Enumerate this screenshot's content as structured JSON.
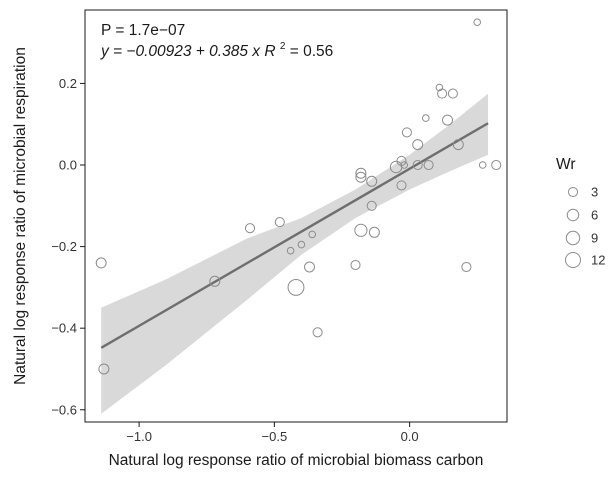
{
  "chart_data": {
    "type": "scatter",
    "xlabel": "Natural log response ratio of microbial biomass carbon",
    "ylabel": "Natural log response ratio of microbial respiration",
    "xlim": [
      -1.2,
      0.36
    ],
    "ylim": [
      -0.63,
      0.38
    ],
    "x_ticks": [
      -1.0,
      -0.5,
      0.0
    ],
    "x_tick_labels": [
      "−1.0",
      "−0.5",
      "0.0"
    ],
    "y_ticks": [
      -0.6,
      -0.4,
      -0.2,
      0.0,
      0.2
    ],
    "y_tick_labels": [
      "−0.6",
      "−0.4",
      "−0.2",
      "0.0",
      "0.2"
    ],
    "grid": false,
    "annotations": {
      "p_value": "P = 1.7e−07",
      "equation_prefix": "y = −0.00923 + 0.385 x",
      "r2_label": "R",
      "r2_sup": "2",
      "r2_value": " = 0.56"
    },
    "fit": {
      "intercept": -0.00923,
      "slope": 0.385,
      "x_range": [
        -1.14,
        0.29
      ],
      "line_color": "#6e6e6e",
      "band_color": "#d9d9d9",
      "band": [
        {
          "x": -1.14,
          "lo": -0.61,
          "hi": -0.35
        },
        {
          "x": -0.9,
          "lo": -0.49,
          "hi": -0.28
        },
        {
          "x": -0.6,
          "lo": -0.33,
          "hi": -0.18
        },
        {
          "x": -0.4,
          "lo": -0.22,
          "hi": -0.13
        },
        {
          "x": -0.2,
          "lo": -0.13,
          "hi": -0.06
        },
        {
          "x": 0.0,
          "lo": -0.06,
          "hi": 0.025
        },
        {
          "x": 0.15,
          "lo": -0.015,
          "hi": 0.1
        },
        {
          "x": 0.29,
          "lo": 0.025,
          "hi": 0.175
        }
      ]
    },
    "size_legend": {
      "title": "Wr",
      "entries": [
        {
          "label": "3",
          "value": 3
        },
        {
          "label": "6",
          "value": 6
        },
        {
          "label": "9",
          "value": 9
        },
        {
          "label": "12",
          "value": 12
        }
      ]
    },
    "points": [
      {
        "x": -1.14,
        "y": -0.24,
        "w": 4
      },
      {
        "x": -1.13,
        "y": -0.5,
        "w": 4
      },
      {
        "x": -0.72,
        "y": -0.285,
        "w": 4
      },
      {
        "x": -0.59,
        "y": -0.155,
        "w": 3
      },
      {
        "x": -0.48,
        "y": -0.14,
        "w": 3
      },
      {
        "x": -0.44,
        "y": -0.21,
        "w": 1
      },
      {
        "x": -0.4,
        "y": -0.195,
        "w": 1
      },
      {
        "x": -0.42,
        "y": -0.3,
        "w": 14
      },
      {
        "x": -0.37,
        "y": -0.25,
        "w": 4
      },
      {
        "x": -0.36,
        "y": -0.17,
        "w": 1
      },
      {
        "x": -0.34,
        "y": -0.41,
        "w": 3
      },
      {
        "x": -0.2,
        "y": -0.245,
        "w": 3
      },
      {
        "x": -0.18,
        "y": -0.16,
        "w": 7
      },
      {
        "x": -0.18,
        "y": -0.02,
        "w": 4
      },
      {
        "x": -0.18,
        "y": -0.03,
        "w": 4
      },
      {
        "x": -0.14,
        "y": -0.04,
        "w": 4
      },
      {
        "x": -0.14,
        "y": -0.1,
        "w": 3
      },
      {
        "x": -0.13,
        "y": -0.165,
        "w": 4
      },
      {
        "x": -0.05,
        "y": -0.005,
        "w": 6
      },
      {
        "x": -0.03,
        "y": 0.01,
        "w": 3
      },
      {
        "x": -0.03,
        "y": -0.05,
        "w": 3
      },
      {
        "x": -0.02,
        "y": 0.0,
        "w": 1
      },
      {
        "x": -0.01,
        "y": 0.08,
        "w": 3
      },
      {
        "x": 0.03,
        "y": 0.0,
        "w": 3
      },
      {
        "x": 0.03,
        "y": 0.05,
        "w": 4
      },
      {
        "x": 0.06,
        "y": 0.115,
        "w": 1
      },
      {
        "x": 0.07,
        "y": 0.0,
        "w": 3
      },
      {
        "x": 0.11,
        "y": 0.19,
        "w": 1
      },
      {
        "x": 0.12,
        "y": 0.175,
        "w": 3
      },
      {
        "x": 0.14,
        "y": 0.11,
        "w": 4
      },
      {
        "x": 0.16,
        "y": 0.175,
        "w": 3
      },
      {
        "x": 0.18,
        "y": 0.05,
        "w": 4
      },
      {
        "x": 0.21,
        "y": -0.25,
        "w": 3
      },
      {
        "x": 0.25,
        "y": 0.35,
        "w": 1
      },
      {
        "x": 0.27,
        "y": 0.0,
        "w": 1
      },
      {
        "x": 0.32,
        "y": 0.0,
        "w": 3
      }
    ]
  }
}
